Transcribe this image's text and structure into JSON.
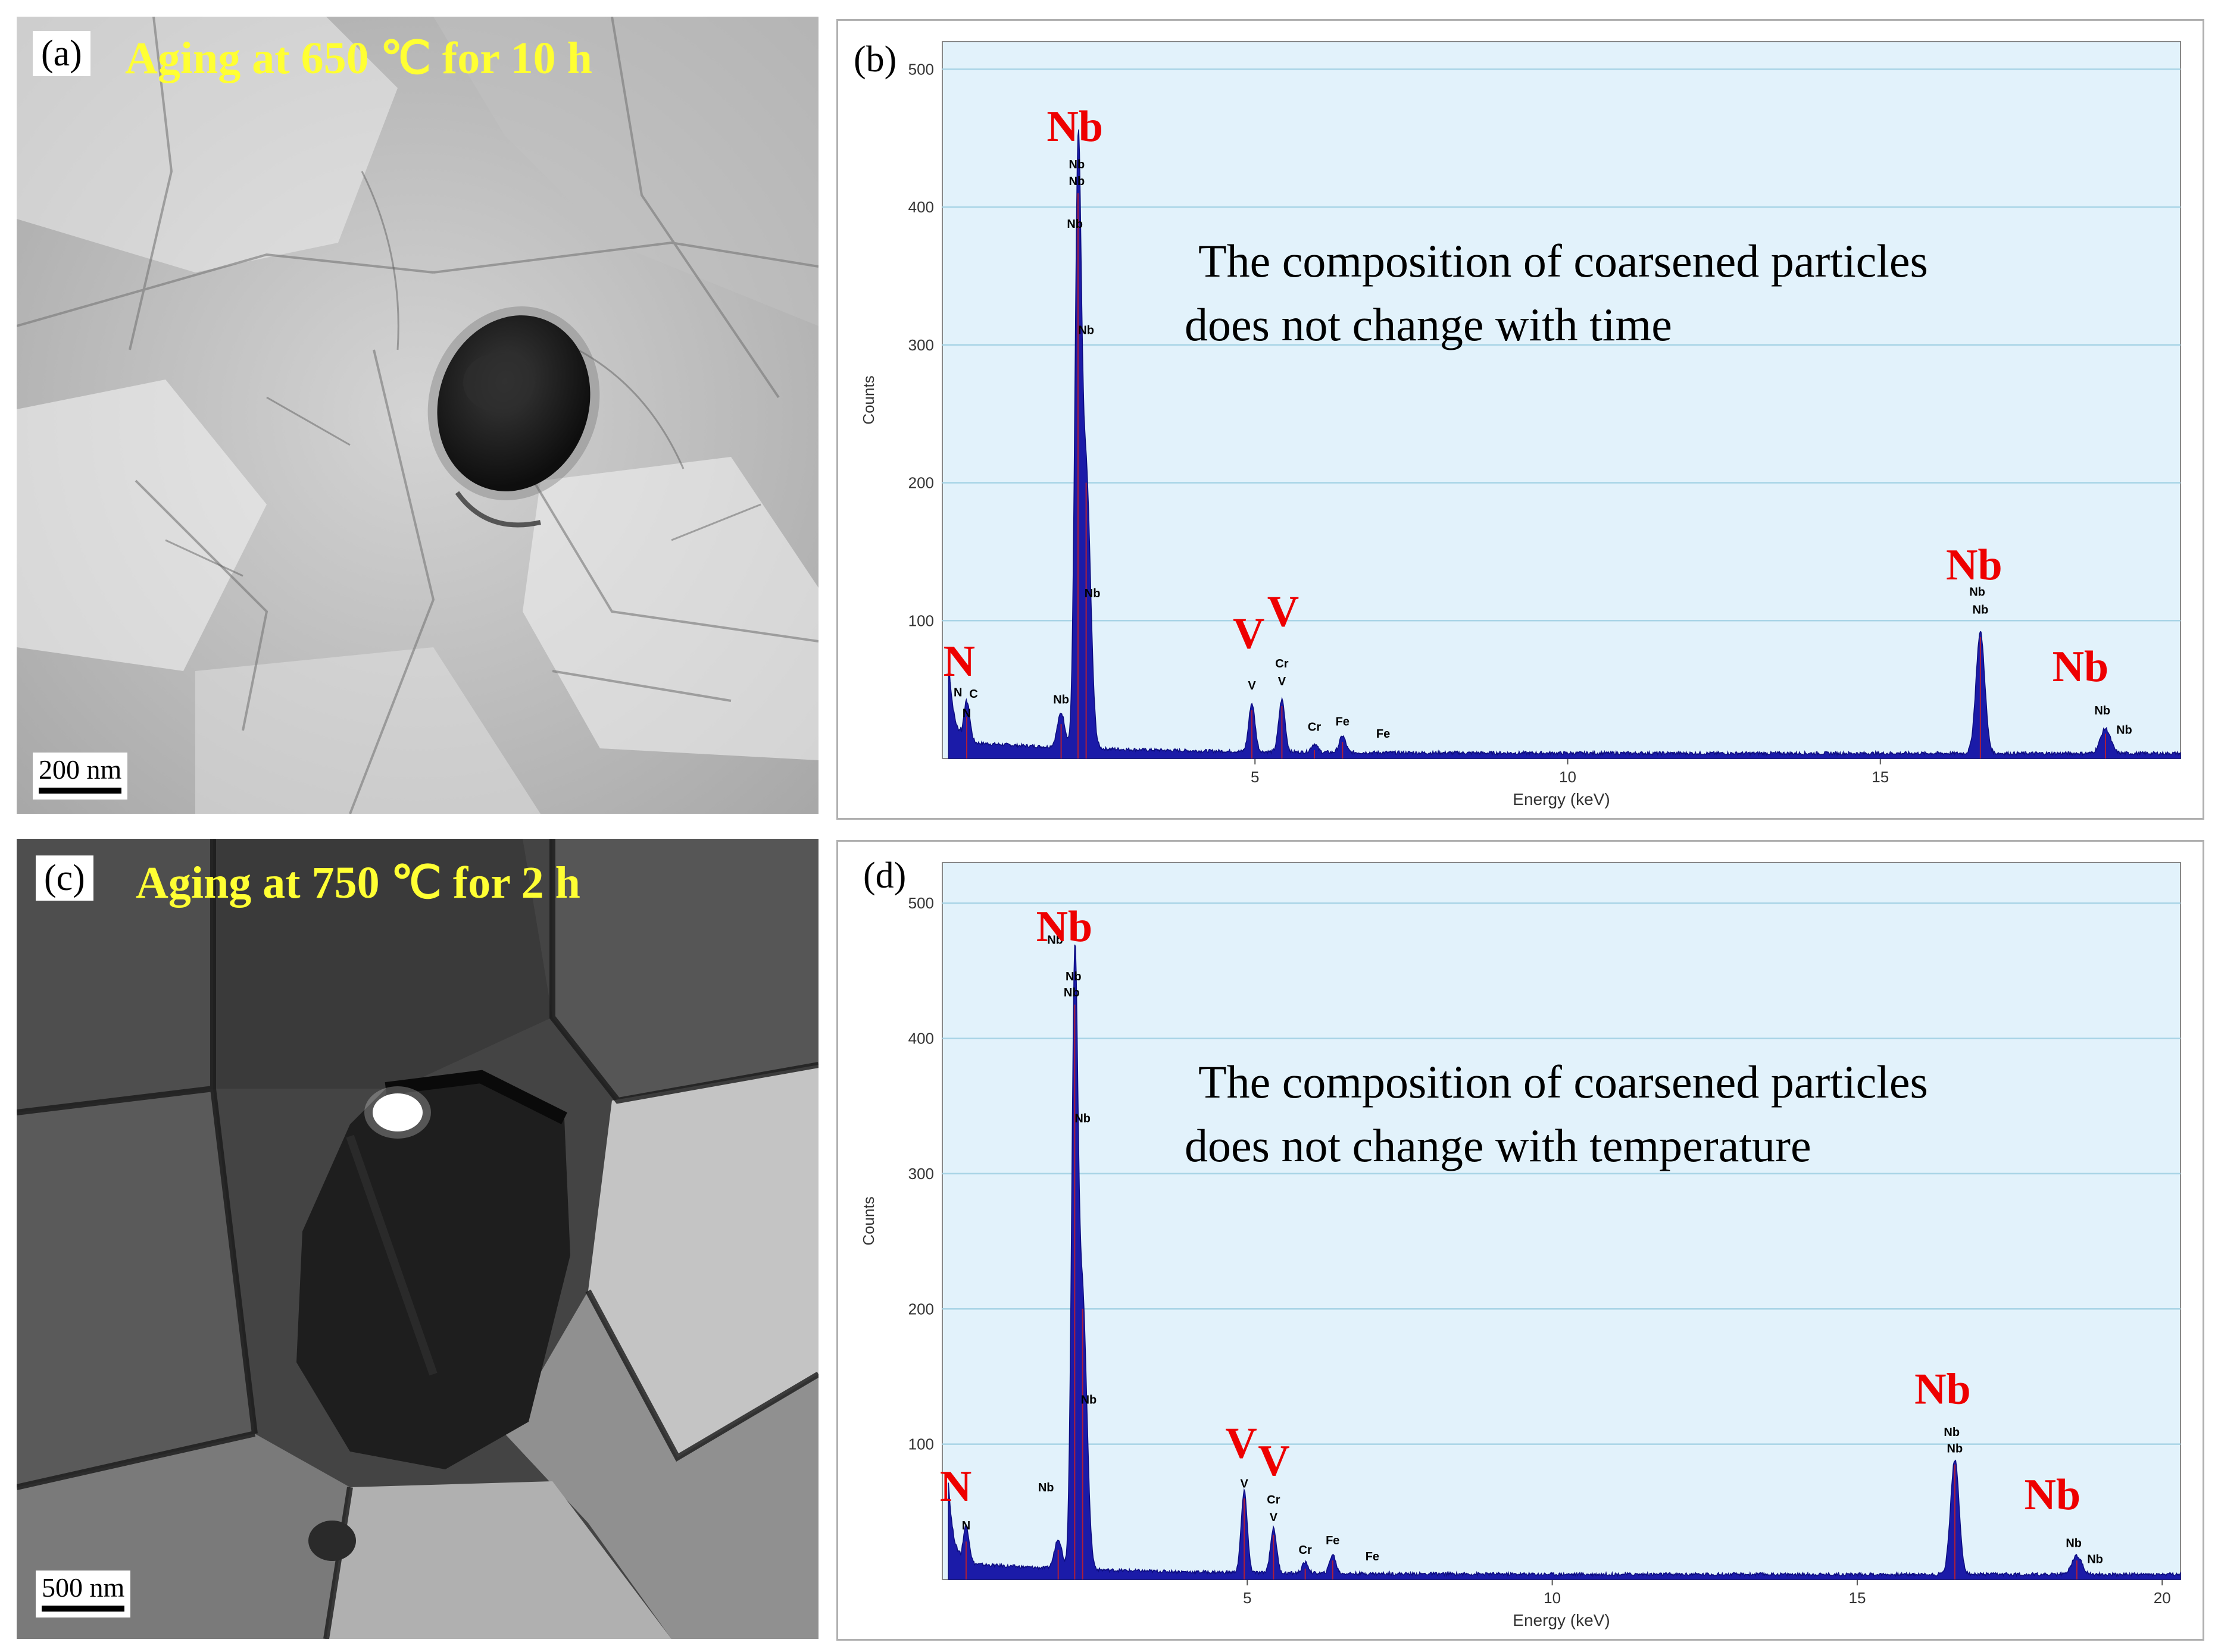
{
  "panels": {
    "a": {
      "letter": "(a)",
      "title": "Aging at 650 ℃ for 10 h",
      "scalebar": "200 nm"
    },
    "c": {
      "letter": "(c)",
      "title": "Aging at 750 ℃ for 2 h",
      "scalebar": "500 nm"
    }
  },
  "chart_data": [
    {
      "panel": "(b)",
      "type": "line",
      "xlabel": "Energy (keV)",
      "ylabel": "Counts",
      "xlim": [
        0,
        19.8
      ],
      "ylim": [
        0,
        520
      ],
      "xticks": [
        5,
        10,
        15
      ],
      "yticks": [
        100,
        200,
        300,
        400,
        500
      ],
      "grid": "horizontal",
      "annotation": [
        "The composition of coarsened particles",
        "does not change with time"
      ],
      "peaks": [
        {
          "x": 0.39,
          "y": 30,
          "w": 0.05
        },
        {
          "x": 1.9,
          "y": 25,
          "w": 0.06
        },
        {
          "x": 2.17,
          "y": 410,
          "w": 0.05
        },
        {
          "x": 2.3,
          "y": 200,
          "w": 0.07
        },
        {
          "x": 4.95,
          "y": 35,
          "w": 0.05
        },
        {
          "x": 5.43,
          "y": 38,
          "w": 0.05
        },
        {
          "x": 5.95,
          "y": 6,
          "w": 0.05
        },
        {
          "x": 6.4,
          "y": 12,
          "w": 0.05
        },
        {
          "x": 16.6,
          "y": 88,
          "w": 0.07
        },
        {
          "x": 18.6,
          "y": 18,
          "w": 0.08
        }
      ],
      "element_labels": [
        {
          "text": "N",
          "x": 0.27,
          "y": 60,
          "dx": 0
        },
        {
          "text": "Nb",
          "x": 2.12,
          "y": 448,
          "dx": 0
        },
        {
          "text": "V",
          "x": 4.9,
          "y": 80,
          "dx": 0
        },
        {
          "text": "V",
          "x": 5.45,
          "y": 96,
          "dx": 0
        },
        {
          "text": "Nb",
          "x": 16.5,
          "y": 130,
          "dx": 0
        },
        {
          "text": "Nb",
          "x": 18.2,
          "y": 56,
          "dx": 0
        }
      ],
      "peak_labels": [
        {
          "text": "N",
          "x": 0.25,
          "y": 45
        },
        {
          "text": "N",
          "x": 0.39,
          "y": 30
        },
        {
          "text": "C",
          "x": 0.5,
          "y": 44
        },
        {
          "text": "Nb",
          "x": 1.9,
          "y": 40
        },
        {
          "text": "Nb",
          "x": 2.15,
          "y": 428
        },
        {
          "text": "Nb",
          "x": 2.15,
          "y": 416
        },
        {
          "text": "Nb",
          "x": 2.12,
          "y": 385
        },
        {
          "text": "Nb",
          "x": 2.3,
          "y": 308
        },
        {
          "text": "Nb",
          "x": 2.4,
          "y": 117
        },
        {
          "text": "V",
          "x": 4.95,
          "y": 50
        },
        {
          "text": "Cr",
          "x": 5.43,
          "y": 66
        },
        {
          "text": "V",
          "x": 5.43,
          "y": 53
        },
        {
          "text": "Cr",
          "x": 5.95,
          "y": 20
        },
        {
          "text": "Fe",
          "x": 6.4,
          "y": 24
        },
        {
          "text": "Fe",
          "x": 7.05,
          "y": 15
        },
        {
          "text": "Nb",
          "x": 16.55,
          "y": 118
        },
        {
          "text": "Nb",
          "x": 16.6,
          "y": 105
        },
        {
          "text": "Nb",
          "x": 18.55,
          "y": 32
        },
        {
          "text": "Nb",
          "x": 18.9,
          "y": 18
        }
      ]
    },
    {
      "panel": "(d)",
      "type": "line",
      "xlabel": "Energy (keV)",
      "ylabel": "Counts",
      "xlim": [
        0,
        20.3
      ],
      "ylim": [
        0,
        530
      ],
      "xticks": [
        5,
        10,
        15,
        20
      ],
      "yticks": [
        100,
        200,
        300,
        400,
        500
      ],
      "grid": "horizontal",
      "annotation": [
        "The composition of coarsened particles",
        "does not change with temperature"
      ],
      "peaks": [
        {
          "x": 0.39,
          "y": 28,
          "w": 0.05
        },
        {
          "x": 1.9,
          "y": 22,
          "w": 0.06
        },
        {
          "x": 2.17,
          "y": 425,
          "w": 0.05
        },
        {
          "x": 2.3,
          "y": 200,
          "w": 0.07
        },
        {
          "x": 4.95,
          "y": 60,
          "w": 0.05
        },
        {
          "x": 5.43,
          "y": 33,
          "w": 0.05
        },
        {
          "x": 5.95,
          "y": 8,
          "w": 0.05
        },
        {
          "x": 6.4,
          "y": 14,
          "w": 0.05
        },
        {
          "x": 16.6,
          "y": 85,
          "w": 0.07
        },
        {
          "x": 18.6,
          "y": 14,
          "w": 0.08
        }
      ],
      "element_labels": [
        {
          "text": "N",
          "x": 0.22,
          "y": 58,
          "dx": 0
        },
        {
          "text": "Nb",
          "x": 2.0,
          "y": 472,
          "dx": 0
        },
        {
          "text": "V",
          "x": 4.9,
          "y": 90,
          "dx": 0
        },
        {
          "text": "V",
          "x": 4.9,
          "y": 77,
          "dx": 55
        },
        {
          "text": "Nb",
          "x": 16.4,
          "y": 130,
          "dx": 0
        },
        {
          "text": "Nb",
          "x": 18.2,
          "y": 52,
          "dx": 0
        }
      ],
      "peak_labels": [
        {
          "text": "N",
          "x": 0.39,
          "y": 37
        },
        {
          "text": "Nb",
          "x": 1.7,
          "y": 65
        },
        {
          "text": "Nb",
          "x": 1.85,
          "y": 470
        },
        {
          "text": "Nb",
          "x": 2.15,
          "y": 443
        },
        {
          "text": "Nb",
          "x": 2.12,
          "y": 431
        },
        {
          "text": "Nb",
          "x": 2.3,
          "y": 338
        },
        {
          "text": "Nb",
          "x": 2.4,
          "y": 130
        },
        {
          "text": "V",
          "x": 4.95,
          "y": 68
        },
        {
          "text": "Cr",
          "x": 5.43,
          "y": 56
        },
        {
          "text": "V",
          "x": 5.43,
          "y": 43
        },
        {
          "text": "Cr",
          "x": 5.95,
          "y": 19
        },
        {
          "text": "Fe",
          "x": 6.4,
          "y": 26
        },
        {
          "text": "Fe",
          "x": 7.05,
          "y": 14
        },
        {
          "text": "Nb",
          "x": 16.55,
          "y": 106
        },
        {
          "text": "Nb",
          "x": 16.6,
          "y": 94
        },
        {
          "text": "Nb",
          "x": 18.55,
          "y": 24
        },
        {
          "text": "Nb",
          "x": 18.9,
          "y": 12
        }
      ]
    }
  ]
}
